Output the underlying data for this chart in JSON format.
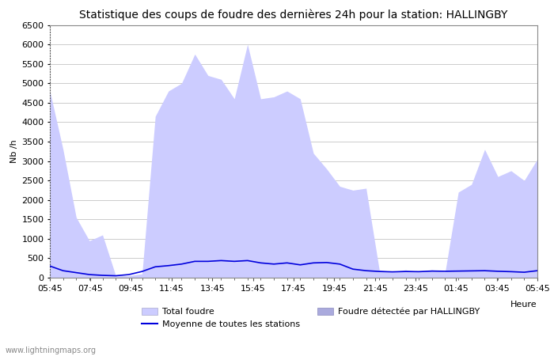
{
  "title": "Statistique des coups de foudre des dernières 24h pour la station: HALLINGBY",
  "xlabel": "Heure",
  "ylabel": "Nb /h",
  "ylim": [
    0,
    6500
  ],
  "yticks": [
    0,
    500,
    1000,
    1500,
    2000,
    2500,
    3000,
    3500,
    4000,
    4500,
    5000,
    5500,
    6000,
    6500
  ],
  "xtick_labels": [
    "05:45",
    "07:45",
    "09:45",
    "11:45",
    "13:45",
    "15:45",
    "17:45",
    "19:45",
    "21:45",
    "23:45",
    "01:45",
    "03:45",
    "05:45"
  ],
  "watermark": "www.lightningmaps.org",
  "fill_color_total": "#ccccff",
  "fill_color_detected": "#aaaadd",
  "line_color": "#0000dd",
  "background_color": "#ffffff",
  "total_foudre": [
    4800,
    3300,
    1550,
    950,
    1100,
    50,
    50,
    100,
    4150,
    4800,
    5000,
    5750,
    5200,
    5100,
    4600,
    6000,
    4600,
    4650,
    4800,
    4600,
    3200,
    2800,
    2350,
    2250,
    2300,
    200,
    150,
    200,
    150,
    200,
    150,
    2200,
    2400,
    3300,
    2600,
    2750,
    2500,
    3050
  ],
  "detected_foudre": [
    0,
    0,
    0,
    0,
    0,
    0,
    0,
    0,
    0,
    0,
    0,
    0,
    0,
    0,
    0,
    0,
    0,
    0,
    0,
    0,
    0,
    0,
    0,
    0,
    0,
    0,
    0,
    0,
    0,
    0,
    0,
    0,
    0,
    0,
    0,
    0,
    0,
    0
  ],
  "moyenne": [
    300,
    180,
    130,
    80,
    60,
    50,
    80,
    160,
    280,
    310,
    350,
    420,
    420,
    440,
    420,
    440,
    380,
    350,
    380,
    330,
    380,
    390,
    350,
    220,
    180,
    160,
    150,
    160,
    155,
    170,
    165,
    170,
    175,
    180,
    165,
    155,
    140,
    180
  ],
  "legend_total": "Total foudre",
  "legend_moyenne": "Moyenne de toutes les stations",
  "legend_detected": "Foudre détectée par HALLINGBY",
  "title_fontsize": 10,
  "tick_fontsize": 8,
  "label_fontsize": 8
}
